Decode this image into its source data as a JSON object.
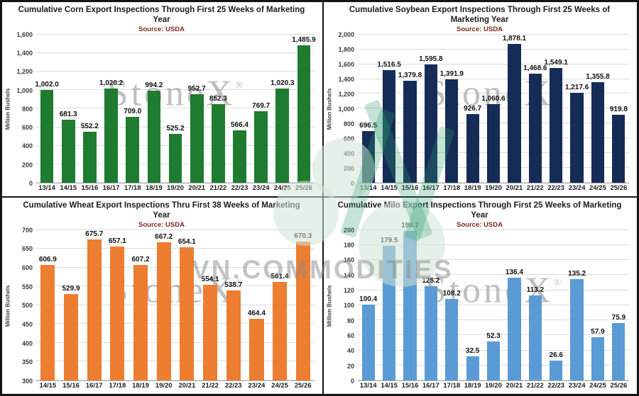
{
  "watermarks": {
    "stonex_text": "StoneX",
    "stonex_reg": "®",
    "vn_text": "VN.COMMODITIES",
    "logo_teal_color": "#2f9e6e",
    "logo_pale_color": "#cfe5d6",
    "stonex_gray_color": "#8c8c8c"
  },
  "chart_data": [
    {
      "id": "corn",
      "type": "bar",
      "title": "Cumulative Corn Export Inspections Through First 25 Weeks of Marketing Year",
      "source": "Source: USDA",
      "ylabel": "Million Bushels",
      "bar_color": "#1e7b2f",
      "ylim": [
        0,
        1600
      ],
      "grid": true,
      "yticks": [
        "0",
        "200",
        "400",
        "600",
        "800",
        "1,000",
        "1,200",
        "1,400",
        "1,600"
      ],
      "categories": [
        "13/14",
        "14/15",
        "15/16",
        "16/17",
        "17/18",
        "18/19",
        "19/20",
        "20/21",
        "21/22",
        "22/23",
        "23/24",
        "24/25",
        "25/26"
      ],
      "values": [
        1002.0,
        681.3,
        552.2,
        1020.2,
        709.0,
        994.2,
        525.2,
        952.7,
        852.3,
        566.4,
        769.7,
        1020.3,
        1485.9
      ],
      "labels": [
        "1,002.0",
        "681.3",
        "552.2",
        "1,020.2",
        "709.0",
        "994.2",
        "525.2",
        "952.7",
        "852.3",
        "566.4",
        "769.7",
        "1,020.3",
        "1,485.9"
      ]
    },
    {
      "id": "soybean",
      "type": "bar",
      "title": "Cumulative Soybean Export Inspections Through First 25 Weeks of Marketing Year",
      "source": "Source: USDA",
      "ylabel": "Million Bushels",
      "bar_color": "#152c57",
      "ylim": [
        0,
        2000
      ],
      "grid": true,
      "yticks": [
        "0",
        "200",
        "400",
        "600",
        "800",
        "1,000",
        "1,200",
        "1,400",
        "1,600",
        "1,800",
        "2,000"
      ],
      "categories": [
        "13/14",
        "14/15",
        "15/16",
        "16/17",
        "17/18",
        "18/19",
        "19/20",
        "20/21",
        "21/22",
        "22/23",
        "23/24",
        "24/25",
        "25/26"
      ],
      "values": [
        696.5,
        1516.5,
        1379.8,
        1595.8,
        1391.9,
        926.7,
        1060.6,
        1878.1,
        1468.6,
        1549.1,
        1217.6,
        1355.8,
        919.8
      ],
      "labels": [
        "696.5",
        "1,516.5",
        "1,379.8",
        "1,595.8",
        "1,391.9",
        "926.7",
        "1,060.6",
        "1,878.1",
        "1,468.6",
        "1,549.1",
        "1,217.6",
        "1,355.8",
        "919.8"
      ]
    },
    {
      "id": "wheat",
      "type": "bar",
      "title": "Cumulative Wheat Export Inspections Thru First 38 Weeks of Marketing Year",
      "source": "Source: USDA",
      "ylabel": "Million Bushels",
      "bar_color": "#ed7d31",
      "ylim": [
        300,
        700
      ],
      "grid": true,
      "yticks": [
        "300",
        "350",
        "400",
        "450",
        "500",
        "550",
        "600",
        "650",
        "700"
      ],
      "categories": [
        "14/15",
        "15/16",
        "16/17",
        "17/18",
        "18/19",
        "19/20",
        "20/21",
        "21/22",
        "22/23",
        "23/24",
        "24/25",
        "25/26"
      ],
      "values": [
        606.9,
        529.9,
        675.7,
        657.1,
        607.2,
        667.2,
        654.1,
        554.1,
        538.7,
        464.4,
        561.4,
        670.3
      ],
      "labels": [
        "606.9",
        "529.9",
        "675.7",
        "657.1",
        "607.2",
        "667.2",
        "654.1",
        "554.1",
        "538.7",
        "464.4",
        "561.4",
        "670.3"
      ]
    },
    {
      "id": "milo",
      "type": "bar",
      "title": "Cumulative Milo Export Inspections Through First 25 Weeks of Marketing Year",
      "source": "Source: USDA",
      "ylabel": "Million Bushels",
      "bar_color": "#5b9bd5",
      "ylim": [
        0,
        200
      ],
      "grid": true,
      "yticks": [
        "0",
        "20",
        "40",
        "60",
        "80",
        "100",
        "120",
        "140",
        "160",
        "180",
        "200"
      ],
      "categories": [
        "13/14",
        "14/15",
        "15/16",
        "16/17",
        "17/18",
        "18/19",
        "19/20",
        "20/21",
        "21/22",
        "22/23",
        "23/24",
        "24/25",
        "25/26"
      ],
      "values": [
        100.4,
        179.5,
        198.7,
        125.2,
        108.2,
        32.5,
        52.3,
        136.4,
        113.2,
        26.6,
        135.2,
        57.9,
        75.9
      ],
      "labels": [
        "100.4",
        "179.5",
        "198.7",
        "125.2",
        "108.2",
        "32.5",
        "52.3",
        "136.4",
        "113.2",
        "26.6",
        "135.2",
        "57.9",
        "75.9"
      ]
    }
  ]
}
